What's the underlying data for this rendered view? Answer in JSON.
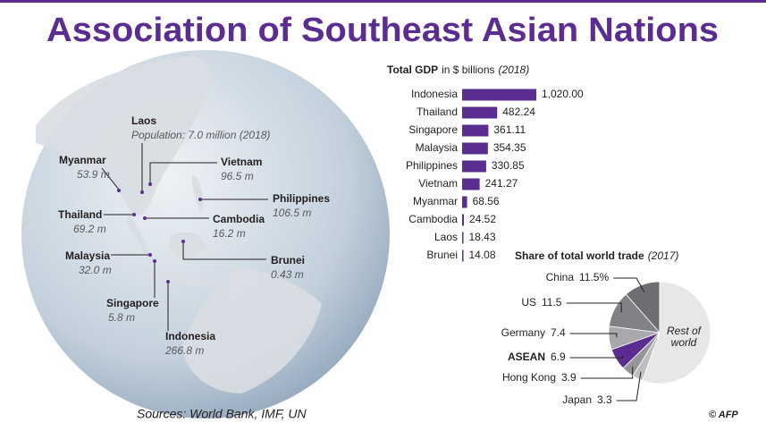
{
  "title": "Association of Southeast Asian Nations",
  "map": {
    "labels": [
      {
        "name": "Laos",
        "detail": "Population: 7.0 million (2018)"
      },
      {
        "name": "Myanmar",
        "detail": "53.9 m"
      },
      {
        "name": "Vietnam",
        "detail": "96.5 m"
      },
      {
        "name": "Philippines",
        "detail": "106.5 m"
      },
      {
        "name": "Thailand",
        "detail": "69.2 m"
      },
      {
        "name": "Cambodia",
        "detail": "16.2 m"
      },
      {
        "name": "Malaysia",
        "detail": "32.0 m"
      },
      {
        "name": "Brunei",
        "detail": "0.43 m"
      },
      {
        "name": "Singapore",
        "detail": "5.8 m"
      },
      {
        "name": "Indonesia",
        "detail": "266.8 m"
      }
    ]
  },
  "chart_data": [
    {
      "type": "bar",
      "title": "Total GDP",
      "subtitle": "in $ billions",
      "note": "(2018)",
      "color": "#5b2d90",
      "categories": [
        "Indonesia",
        "Thailand",
        "Singapore",
        "Malaysia",
        "Philippines",
        "Vietnam",
        "Myanmar",
        "Cambodia",
        "Laos",
        "Brunei"
      ],
      "values": [
        1020.0,
        482.24,
        361.11,
        354.35,
        330.85,
        241.27,
        68.56,
        24.52,
        18.43,
        14.08
      ],
      "value_labels": [
        "1,020.00",
        "482.24",
        "361.11",
        "354.35",
        "330.85",
        "241.27",
        "68.56",
        "24.52",
        "18.43",
        "14.08"
      ]
    },
    {
      "type": "pie",
      "title": "Share of total world trade",
      "note": "(2017)",
      "categories": [
        "China",
        "US",
        "Germany",
        "ASEAN",
        "Hong Kong",
        "Japan",
        "Rest of world"
      ],
      "values": [
        11.5,
        11.5,
        7.4,
        6.9,
        3.9,
        3.3,
        55.5
      ],
      "value_labels": [
        "11.5%",
        "11.5",
        "7.4",
        "6.9",
        "3.9",
        "3.3",
        null
      ],
      "colors": [
        "#6d6e71",
        "#808285",
        "#a7a9ac",
        "#5b2d90",
        "#939598",
        "#bcbec0",
        "#e6e7e8"
      ]
    }
  ],
  "sources": "Sources: World Bank, IMF, UN",
  "credit": "© AFP"
}
